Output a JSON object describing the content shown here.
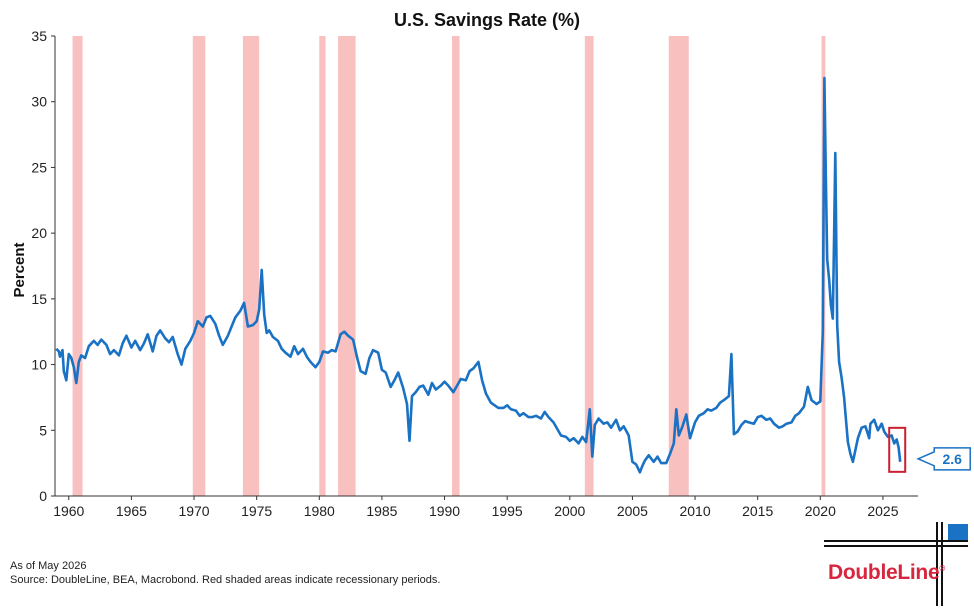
{
  "chart_data": {
    "type": "line",
    "title": "U.S. Savings Rate (%)",
    "ylabel": "Percent",
    "xlabel": "",
    "xlim": [
      1958.9,
      2027.8
    ],
    "ylim": [
      0,
      35
    ],
    "x_ticks": [
      "1960",
      "1965",
      "1970",
      "1975",
      "1980",
      "1985",
      "1990",
      "1995",
      "2000",
      "2005",
      "2010",
      "2015",
      "2020",
      "2025"
    ],
    "y_ticks": [
      "0",
      "5",
      "10",
      "15",
      "20",
      "25",
      "30",
      "35"
    ],
    "grid": false,
    "colors": {
      "line": "#1a72c4",
      "recession": "#f9c0c0",
      "highlight_box": "#cc1f2f",
      "callout_border": "#1a72c4",
      "callout_text": "#1a72c4"
    },
    "recessions": [
      [
        1960.3,
        1961.1
      ],
      [
        1969.9,
        1970.9
      ],
      [
        1973.9,
        1975.2
      ],
      [
        1980.0,
        1980.5
      ],
      [
        1981.5,
        1982.9
      ],
      [
        1990.6,
        1991.2
      ],
      [
        2001.2,
        2001.9
      ],
      [
        2007.9,
        2009.5
      ],
      [
        2020.1,
        2020.4
      ]
    ],
    "series": [
      {
        "points": [
          [
            1959.0,
            11.2
          ],
          [
            1959.2,
            11.0
          ],
          [
            1959.3,
            10.6
          ],
          [
            1959.5,
            11.1
          ],
          [
            1959.6,
            9.5
          ],
          [
            1959.8,
            8.8
          ],
          [
            1960.0,
            10.8
          ],
          [
            1960.2,
            10.5
          ],
          [
            1960.4,
            9.8
          ],
          [
            1960.6,
            8.6
          ],
          [
            1960.8,
            10.2
          ],
          [
            1961.0,
            10.7
          ],
          [
            1961.3,
            10.5
          ],
          [
            1961.6,
            11.4
          ],
          [
            1962.0,
            11.8
          ],
          [
            1962.3,
            11.5
          ],
          [
            1962.6,
            11.9
          ],
          [
            1963.0,
            11.5
          ],
          [
            1963.3,
            10.8
          ],
          [
            1963.6,
            11.1
          ],
          [
            1964.0,
            10.7
          ],
          [
            1964.3,
            11.6
          ],
          [
            1964.6,
            12.2
          ],
          [
            1965.0,
            11.3
          ],
          [
            1965.3,
            11.8
          ],
          [
            1965.7,
            11.1
          ],
          [
            1966.0,
            11.6
          ],
          [
            1966.3,
            12.3
          ],
          [
            1966.7,
            11.0
          ],
          [
            1967.0,
            12.2
          ],
          [
            1967.3,
            12.6
          ],
          [
            1967.7,
            12.0
          ],
          [
            1968.0,
            11.7
          ],
          [
            1968.3,
            12.1
          ],
          [
            1968.7,
            10.8
          ],
          [
            1969.0,
            10.0
          ],
          [
            1969.3,
            11.2
          ],
          [
            1969.7,
            11.8
          ],
          [
            1970.0,
            12.4
          ],
          [
            1970.3,
            13.3
          ],
          [
            1970.7,
            12.9
          ],
          [
            1971.0,
            13.6
          ],
          [
            1971.3,
            13.7
          ],
          [
            1971.7,
            13.1
          ],
          [
            1972.0,
            12.2
          ],
          [
            1972.3,
            11.5
          ],
          [
            1972.7,
            12.2
          ],
          [
            1973.0,
            12.9
          ],
          [
            1973.3,
            13.6
          ],
          [
            1973.7,
            14.1
          ],
          [
            1974.0,
            14.7
          ],
          [
            1974.3,
            12.9
          ],
          [
            1974.7,
            13.0
          ],
          [
            1975.0,
            13.3
          ],
          [
            1975.2,
            14.2
          ],
          [
            1975.4,
            17.2
          ],
          [
            1975.6,
            13.8
          ],
          [
            1975.8,
            12.4
          ],
          [
            1976.0,
            12.6
          ],
          [
            1976.3,
            12.1
          ],
          [
            1976.7,
            11.8
          ],
          [
            1977.0,
            11.2
          ],
          [
            1977.3,
            10.9
          ],
          [
            1977.7,
            10.6
          ],
          [
            1978.0,
            11.4
          ],
          [
            1978.3,
            10.8
          ],
          [
            1978.7,
            11.2
          ],
          [
            1979.0,
            10.6
          ],
          [
            1979.3,
            10.2
          ],
          [
            1979.7,
            9.8
          ],
          [
            1980.0,
            10.2
          ],
          [
            1980.3,
            11.0
          ],
          [
            1980.7,
            10.9
          ],
          [
            1981.0,
            11.1
          ],
          [
            1981.3,
            11.0
          ],
          [
            1981.7,
            12.3
          ],
          [
            1982.0,
            12.5
          ],
          [
            1982.3,
            12.2
          ],
          [
            1982.7,
            11.9
          ],
          [
            1983.0,
            10.6
          ],
          [
            1983.3,
            9.5
          ],
          [
            1983.7,
            9.3
          ],
          [
            1984.0,
            10.5
          ],
          [
            1984.3,
            11.1
          ],
          [
            1984.7,
            10.9
          ],
          [
            1985.0,
            9.6
          ],
          [
            1985.3,
            9.4
          ],
          [
            1985.7,
            8.3
          ],
          [
            1986.0,
            8.8
          ],
          [
            1986.3,
            9.4
          ],
          [
            1986.7,
            8.2
          ],
          [
            1987.0,
            7.0
          ],
          [
            1987.2,
            4.2
          ],
          [
            1987.4,
            7.6
          ],
          [
            1987.7,
            7.9
          ],
          [
            1988.0,
            8.3
          ],
          [
            1988.3,
            8.4
          ],
          [
            1988.7,
            7.7
          ],
          [
            1989.0,
            8.6
          ],
          [
            1989.3,
            8.1
          ],
          [
            1989.7,
            8.4
          ],
          [
            1990.0,
            8.7
          ],
          [
            1990.3,
            8.4
          ],
          [
            1990.7,
            7.9
          ],
          [
            1991.0,
            8.4
          ],
          [
            1991.3,
            8.9
          ],
          [
            1991.7,
            8.8
          ],
          [
            1992.0,
            9.5
          ],
          [
            1992.3,
            9.7
          ],
          [
            1992.7,
            10.2
          ],
          [
            1993.0,
            8.8
          ],
          [
            1993.3,
            7.8
          ],
          [
            1993.7,
            7.1
          ],
          [
            1994.0,
            6.9
          ],
          [
            1994.3,
            6.7
          ],
          [
            1994.7,
            6.7
          ],
          [
            1995.0,
            6.9
          ],
          [
            1995.3,
            6.6
          ],
          [
            1995.7,
            6.5
          ],
          [
            1996.0,
            6.1
          ],
          [
            1996.3,
            6.3
          ],
          [
            1996.7,
            6.0
          ],
          [
            1997.0,
            6.0
          ],
          [
            1997.3,
            6.1
          ],
          [
            1997.7,
            5.9
          ],
          [
            1998.0,
            6.4
          ],
          [
            1998.3,
            6.0
          ],
          [
            1998.7,
            5.6
          ],
          [
            1999.0,
            5.1
          ],
          [
            1999.3,
            4.6
          ],
          [
            1999.7,
            4.5
          ],
          [
            2000.0,
            4.2
          ],
          [
            2000.3,
            4.4
          ],
          [
            2000.7,
            4.0
          ],
          [
            2001.0,
            4.5
          ],
          [
            2001.3,
            4.1
          ],
          [
            2001.6,
            6.6
          ],
          [
            2001.8,
            3.0
          ],
          [
            2002.0,
            5.4
          ],
          [
            2002.3,
            5.9
          ],
          [
            2002.7,
            5.5
          ],
          [
            2003.0,
            5.6
          ],
          [
            2003.3,
            5.2
          ],
          [
            2003.7,
            5.8
          ],
          [
            2004.0,
            5.0
          ],
          [
            2004.3,
            5.3
          ],
          [
            2004.7,
            4.6
          ],
          [
            2005.0,
            2.6
          ],
          [
            2005.3,
            2.4
          ],
          [
            2005.6,
            1.8
          ],
          [
            2005.8,
            2.3
          ],
          [
            2006.0,
            2.7
          ],
          [
            2006.3,
            3.1
          ],
          [
            2006.7,
            2.6
          ],
          [
            2007.0,
            3.0
          ],
          [
            2007.3,
            2.5
          ],
          [
            2007.7,
            2.5
          ],
          [
            2008.0,
            3.2
          ],
          [
            2008.3,
            4.0
          ],
          [
            2008.5,
            6.6
          ],
          [
            2008.7,
            4.6
          ],
          [
            2009.0,
            5.3
          ],
          [
            2009.3,
            6.2
          ],
          [
            2009.6,
            4.4
          ],
          [
            2010.0,
            5.6
          ],
          [
            2010.3,
            6.1
          ],
          [
            2010.7,
            6.3
          ],
          [
            2011.0,
            6.6
          ],
          [
            2011.3,
            6.5
          ],
          [
            2011.7,
            6.7
          ],
          [
            2012.0,
            7.1
          ],
          [
            2012.3,
            7.3
          ],
          [
            2012.7,
            7.6
          ],
          [
            2012.9,
            10.8
          ],
          [
            2013.1,
            4.7
          ],
          [
            2013.4,
            4.9
          ],
          [
            2013.7,
            5.4
          ],
          [
            2014.0,
            5.7
          ],
          [
            2014.3,
            5.6
          ],
          [
            2014.7,
            5.5
          ],
          [
            2015.0,
            6.0
          ],
          [
            2015.3,
            6.1
          ],
          [
            2015.7,
            5.8
          ],
          [
            2016.0,
            5.9
          ],
          [
            2016.3,
            5.5
          ],
          [
            2016.7,
            5.2
          ],
          [
            2017.0,
            5.3
          ],
          [
            2017.3,
            5.5
          ],
          [
            2017.7,
            5.6
          ],
          [
            2018.0,
            6.1
          ],
          [
            2018.3,
            6.3
          ],
          [
            2018.7,
            6.8
          ],
          [
            2019.0,
            8.3
          ],
          [
            2019.3,
            7.3
          ],
          [
            2019.7,
            7.0
          ],
          [
            2020.0,
            7.2
          ],
          [
            2020.2,
            12.5
          ],
          [
            2020.33,
            31.8
          ],
          [
            2020.45,
            24.0
          ],
          [
            2020.55,
            18.0
          ],
          [
            2020.7,
            16.5
          ],
          [
            2020.85,
            14.5
          ],
          [
            2021.0,
            13.5
          ],
          [
            2021.1,
            19.8
          ],
          [
            2021.2,
            26.1
          ],
          [
            2021.35,
            13.0
          ],
          [
            2021.5,
            10.2
          ],
          [
            2021.7,
            9.0
          ],
          [
            2021.9,
            7.5
          ],
          [
            2022.0,
            6.3
          ],
          [
            2022.2,
            4.1
          ],
          [
            2022.4,
            3.2
          ],
          [
            2022.6,
            2.6
          ],
          [
            2022.8,
            3.5
          ],
          [
            2023.0,
            4.4
          ],
          [
            2023.3,
            5.2
          ],
          [
            2023.6,
            5.3
          ],
          [
            2023.9,
            4.4
          ],
          [
            2024.0,
            5.5
          ],
          [
            2024.3,
            5.8
          ],
          [
            2024.6,
            5.0
          ],
          [
            2024.9,
            5.5
          ],
          [
            2025.1,
            4.9
          ],
          [
            2025.4,
            4.5
          ],
          [
            2025.7,
            4.6
          ],
          [
            2025.9,
            4.0
          ],
          [
            2026.1,
            4.3
          ],
          [
            2026.25,
            3.7
          ],
          [
            2026.38,
            2.6
          ]
        ]
      }
    ],
    "annotation": {
      "label": "2.6",
      "x": 2026.38,
      "y": 2.6
    }
  },
  "footer": {
    "as_of": "As of May 2026",
    "source": "Source: DoubleLine, BEA, Macrobond. Red shaded areas indicate recessionary periods."
  },
  "logo": {
    "text": "DoubleLine",
    "mark": "®"
  }
}
